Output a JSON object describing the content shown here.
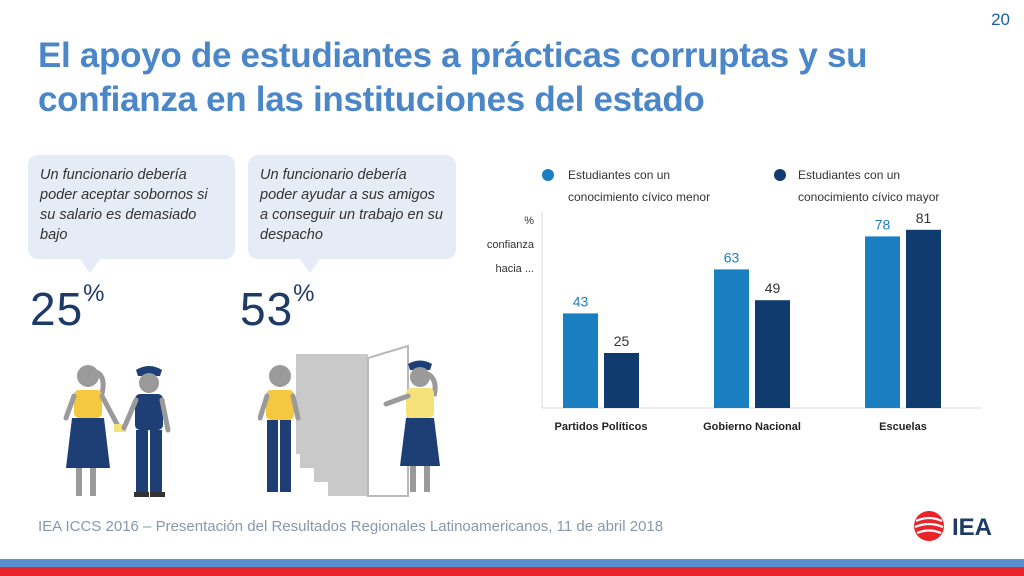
{
  "page_number": "20",
  "title": "El apoyo de estudiantes a prácticas corruptas y su confianza en las instituciones del estado",
  "bubbles": [
    {
      "text": "Un funcionario debería poder aceptar sobornos si su salario es demasiado bajo",
      "percent": "25",
      "percent_sign": "%"
    },
    {
      "text": "Un funcionario debería poder ayudar a sus amigos a conseguir un trabajo en su despacho",
      "percent": "53",
      "percent_sign": "%"
    }
  ],
  "chart_data": {
    "type": "bar",
    "categories": [
      "Partidos Políticos",
      "Gobierno Nacional",
      "Escuelas"
    ],
    "ylabel": [
      "%",
      "confianza",
      "hacia ..."
    ],
    "ylim": [
      0,
      100
    ],
    "legend_position": "top",
    "series": [
      {
        "name": "Estudiantes con un conocimiento cívico menor",
        "name_lines": [
          "Estudiantes con un",
          "conocimiento cívico menor"
        ],
        "values": [
          43,
          63,
          78
        ],
        "color": "#1a7fc1"
      },
      {
        "name": "Estudiantes con un conocimiento cívico mayor",
        "name_lines": [
          "Estudiantes con un",
          "conocimiento cívico mayor"
        ],
        "values": [
          25,
          49,
          81
        ],
        "color": "#0f3b6e"
      }
    ]
  },
  "footer": "IEA ICCS 2016 – Presentación del Resultados Regionales Latinoamericanos, 11 de abril 2018",
  "logo_text": "IEA",
  "colors": {
    "title": "#4a86c8",
    "accent_blue": "#5b8fd0",
    "accent_red": "#e8232a",
    "bubble_bg": "#e6ecf5"
  }
}
